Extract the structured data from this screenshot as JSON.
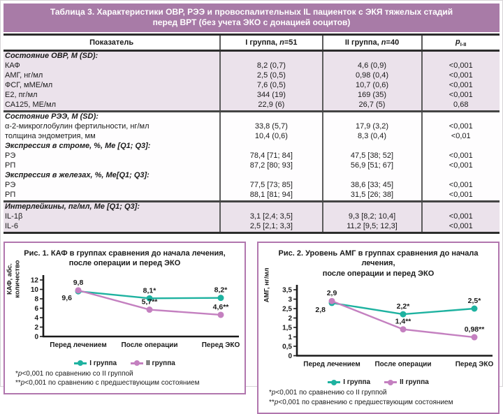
{
  "table": {
    "title": "Таблица 3. Характеристики ОВР, РЭЭ и провоспалительных IL пациенток с ЭКЯ тяжелых стадий перед ВРТ (без учета ЭКО с донацией ооцитов)",
    "columns": {
      "indicator": "Показатель",
      "group1": {
        "pre": "I группа, ",
        "n": "n",
        "eq": "=51"
      },
      "group2": {
        "pre": "II группа, ",
        "n": "n",
        "eq": "=40"
      },
      "p": {
        "base": "p",
        "sub": "I-II"
      }
    },
    "sections": [
      {
        "header": "Состояние ОВР, М (SD):",
        "shaded": true,
        "rows": [
          [
            "КАФ",
            "8,2 (0,7)",
            "4,6 (0,9)",
            "<0,001"
          ],
          [
            "АМГ, нг/мл",
            "2,5 (0,5)",
            "0,98 (0,4)",
            "<0,001"
          ],
          [
            "ФСГ, мМЕ/мл",
            "7,6 (0,5)",
            "10,7 (0,6)",
            "<0,001"
          ],
          [
            "Е2, пг/мл",
            "344 (19)",
            "169 (35)",
            "<0,001"
          ],
          [
            "СА125, МЕ/мл",
            "22,9 (6)",
            "26,7 (5)",
            "0,68"
          ]
        ]
      },
      {
        "header": "Состояние РЭЭ, М (SD):",
        "shaded": false,
        "rows": [
          [
            "α-2-микроглобулин фертильности, нг/мл",
            "33,8 (5,7)",
            "17,9 (3,2)",
            "<0,001"
          ],
          [
            "толщина эндометрия, мм",
            "10,4 (0,6)",
            "8,3 (0,4)",
            "<0,01"
          ]
        ]
      },
      {
        "header": "Экспрессия в строме, %, Ме [Q1; Q3]:",
        "shaded": false,
        "rows": [
          [
            "РЭ",
            "78,4 [71; 84]",
            "47,5 [38; 52]",
            "<0,001"
          ],
          [
            "РП",
            "87,2 [80; 93]",
            "56,9 [51; 67]",
            "<0,001"
          ]
        ]
      },
      {
        "header": "Экспрессия в железах, %, Ме[Q1; Q3]:",
        "shaded": false,
        "rows": [
          [
            "РЭ",
            "77,5 [73; 85]",
            "38,6 [33; 45]",
            "<0,001"
          ],
          [
            "РП",
            "88,1 [81; 94]",
            "31,5 [26; 38]",
            "<0,001"
          ]
        ]
      },
      {
        "header": "Интерлейкины, пг/мл, Ме [Q1; Q3]:",
        "shaded": true,
        "rows": [
          [
            "IL-1β",
            "3,1 [2,4; 3,5]",
            "9,3 [8,2; 10,4]",
            "<0,001"
          ],
          [
            "IL-6",
            "2,5 [2,1; 3,3]",
            "11,2 [9,5; 12,3]",
            "<0,001"
          ]
        ]
      }
    ]
  },
  "chart_data": [
    {
      "type": "line",
      "title": "Рис. 1. КАФ в группах сравнения до начала лечения, после операции и перед ЭКО",
      "title_lines": [
        "Рис. 1. КАФ в группах сравнения до начала лечения,",
        "после операции и перед ЭКО"
      ],
      "ylabel": "КАФ, абс. количество",
      "ylabel_lines": {
        "0": "КАФ, абс.",
        "1": "количество"
      },
      "categories": [
        "Перед лечением",
        "После операции",
        "Перед ЭКО"
      ],
      "ylim": [
        0,
        12
      ],
      "yticks": [
        0,
        2,
        4,
        6,
        8,
        10,
        12
      ],
      "ytick_labels": [
        "0",
        "2",
        "4",
        "6",
        "8",
        "10",
        "12"
      ],
      "grid": false,
      "legend_position": "bottom",
      "series": [
        {
          "name": "I группа",
          "color": "#1eb2a0",
          "values": [
            9.6,
            8.1,
            8.2
          ],
          "labels": [
            "9,6",
            "8,1*",
            "8,2*"
          ]
        },
        {
          "name": "II группа",
          "color": "#c480c0",
          "values": [
            9.8,
            5.7,
            4.6
          ],
          "labels": [
            "9,8",
            "5,7**",
            "4,6**"
          ]
        }
      ],
      "footnotes": [
        {
          "stars": "*",
          "pvar": "p",
          "rest": "<0,001 по сравнению со II группой"
        },
        {
          "stars": "**",
          "pvar": "p",
          "rest": "<0,001 по сравнению с предшествующим состоянием"
        }
      ]
    },
    {
      "type": "line",
      "title": "Рис. 2. Уровень АМГ в группах сравнения до начала лечения, после операции и перед ЭКО",
      "title_lines": [
        "Рис. 2. Уровень АМГ в группах сравнения до начала лечения,",
        "после операции и перед ЭКО"
      ],
      "ylabel": "АМГ, нг/мл",
      "ylabel_lines": {
        "0": "АМГ, нг/мл"
      },
      "categories": [
        "Перед лечением",
        "После операции",
        "Перед ЭКО"
      ],
      "ylim": [
        0,
        3.5
      ],
      "yticks": [
        0,
        0.5,
        1,
        1.5,
        2,
        2.5,
        3,
        3.5
      ],
      "ytick_labels": [
        "0",
        "0,5",
        "1",
        "1,5",
        "2",
        "2,5",
        "3",
        "3,5"
      ],
      "grid": false,
      "legend_position": "bottom",
      "series": [
        {
          "name": "I группа",
          "color": "#1eb2a0",
          "values": [
            2.8,
            2.2,
            2.5
          ],
          "labels": [
            "2,8",
            "2,2*",
            "2,5*"
          ]
        },
        {
          "name": "II группа",
          "color": "#c480c0",
          "values": [
            2.9,
            1.4,
            0.98
          ],
          "labels": [
            "2,9",
            "1,4**",
            "0,98**"
          ]
        }
      ],
      "footnotes": [
        {
          "stars": "*",
          "pvar": "p",
          "rest": "<0,001 по сравнению со II группой"
        },
        {
          "stars": "**",
          "pvar": "p",
          "rest": "<0,001 по сравнению с предшествующим состоянием"
        }
      ]
    }
  ],
  "colors": {
    "title_bar": "#a87ba7",
    "shaded_row": "#ebe2eb",
    "panel_border": "#b176ae",
    "group1_line": "#1eb2a0",
    "group2_line": "#c480c0"
  }
}
